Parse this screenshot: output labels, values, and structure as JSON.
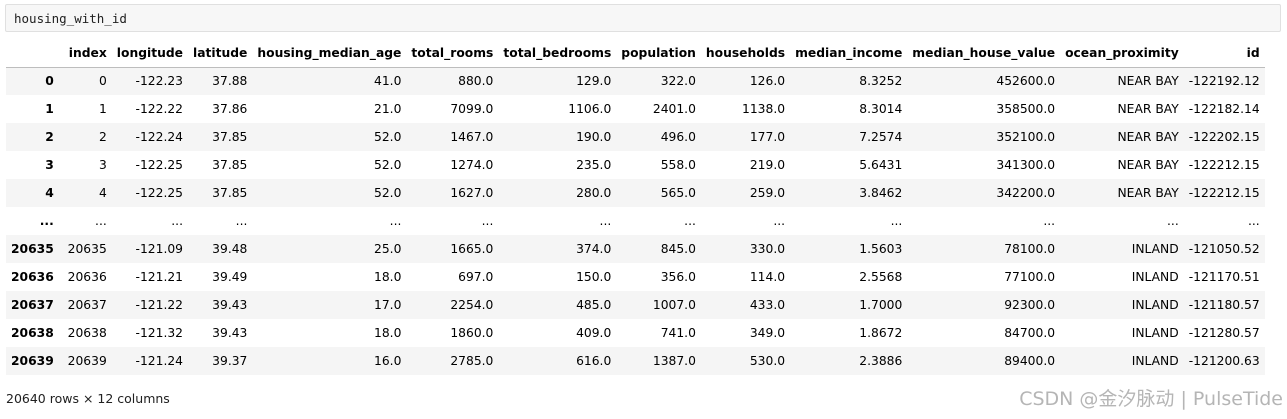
{
  "cell": {
    "code": "housing_with_id"
  },
  "table": {
    "columns": [
      "",
      "index",
      "longitude",
      "latitude",
      "housing_median_age",
      "total_rooms",
      "total_bedrooms",
      "population",
      "households",
      "median_income",
      "median_house_value",
      "ocean_proximity",
      "id"
    ],
    "rows": [
      [
        "0",
        "0",
        "-122.23",
        "37.88",
        "41.0",
        "880.0",
        "129.0",
        "322.0",
        "126.0",
        "8.3252",
        "452600.0",
        "NEAR BAY",
        "-122192.12"
      ],
      [
        "1",
        "1",
        "-122.22",
        "37.86",
        "21.0",
        "7099.0",
        "1106.0",
        "2401.0",
        "1138.0",
        "8.3014",
        "358500.0",
        "NEAR BAY",
        "-122182.14"
      ],
      [
        "2",
        "2",
        "-122.24",
        "37.85",
        "52.0",
        "1467.0",
        "190.0",
        "496.0",
        "177.0",
        "7.2574",
        "352100.0",
        "NEAR BAY",
        "-122202.15"
      ],
      [
        "3",
        "3",
        "-122.25",
        "37.85",
        "52.0",
        "1274.0",
        "235.0",
        "558.0",
        "219.0",
        "5.6431",
        "341300.0",
        "NEAR BAY",
        "-122212.15"
      ],
      [
        "4",
        "4",
        "-122.25",
        "37.85",
        "52.0",
        "1627.0",
        "280.0",
        "565.0",
        "259.0",
        "3.8462",
        "342200.0",
        "NEAR BAY",
        "-122212.15"
      ],
      [
        "...",
        "...",
        "...",
        "...",
        "...",
        "...",
        "...",
        "...",
        "...",
        "...",
        "...",
        "...",
        "..."
      ],
      [
        "20635",
        "20635",
        "-121.09",
        "39.48",
        "25.0",
        "1665.0",
        "374.0",
        "845.0",
        "330.0",
        "1.5603",
        "78100.0",
        "INLAND",
        "-121050.52"
      ],
      [
        "20636",
        "20636",
        "-121.21",
        "39.49",
        "18.0",
        "697.0",
        "150.0",
        "356.0",
        "114.0",
        "2.5568",
        "77100.0",
        "INLAND",
        "-121170.51"
      ],
      [
        "20637",
        "20637",
        "-121.22",
        "39.43",
        "17.0",
        "2254.0",
        "485.0",
        "1007.0",
        "433.0",
        "1.7000",
        "92300.0",
        "INLAND",
        "-121180.57"
      ],
      [
        "20638",
        "20638",
        "-121.32",
        "39.43",
        "18.0",
        "1860.0",
        "409.0",
        "741.0",
        "349.0",
        "1.8672",
        "84700.0",
        "INLAND",
        "-121280.57"
      ],
      [
        "20639",
        "20639",
        "-121.24",
        "39.37",
        "16.0",
        "2785.0",
        "616.0",
        "1387.0",
        "530.0",
        "2.3886",
        "89400.0",
        "INLAND",
        "-121200.63"
      ]
    ]
  },
  "shape_text": "20640 rows × 12 columns",
  "watermark": "CSDN @金汐脉动 | PulseTide"
}
